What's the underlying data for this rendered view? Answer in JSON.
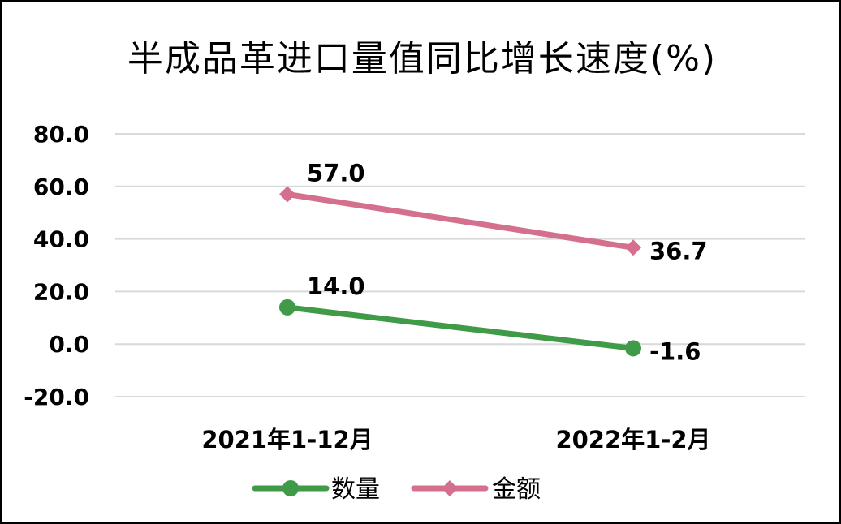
{
  "chart_data": {
    "type": "line",
    "title": "半成品革进口量值同比增长速度(%)",
    "categories": [
      "2021年1-12月",
      "2022年1-2月"
    ],
    "series": [
      {
        "name": "数量",
        "values": [
          14.0,
          -1.6
        ],
        "labels": [
          "14.0",
          "-1.6"
        ],
        "color": "#3f9b47",
        "marker": "circle"
      },
      {
        "name": "金额",
        "values": [
          57.0,
          36.7
        ],
        "labels": [
          "57.0",
          "36.7"
        ],
        "color": "#d4708e",
        "marker": "diamond"
      }
    ],
    "yticks": [
      "80.0",
      "60.0",
      "40.0",
      "20.0",
      "0.0",
      "-20.0"
    ],
    "ylim": [
      -20,
      80
    ],
    "grid": true,
    "legend": "bottom"
  }
}
